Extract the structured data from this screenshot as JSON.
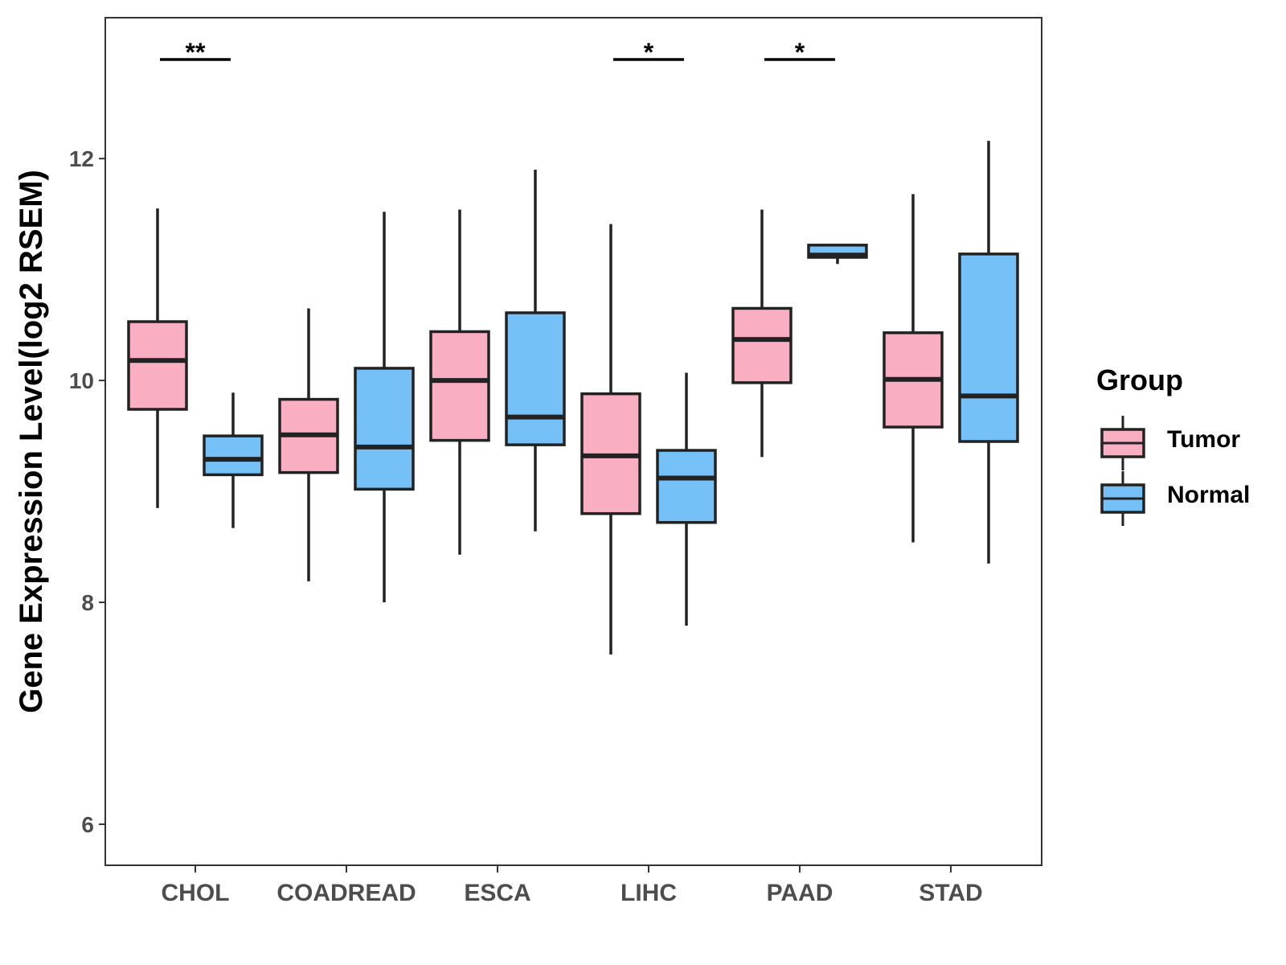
{
  "chart_data": {
    "type": "boxplot",
    "title": "",
    "xlabel": "",
    "ylabel": "Gene Expression Level(log2 RSEM)",
    "ylim": [
      5.63,
      13.27
    ],
    "yticks": [
      6,
      8,
      10,
      12
    ],
    "categories": [
      "CHOL",
      "COADREAD",
      "ESCA",
      "LIHC",
      "PAAD",
      "STAD"
    ],
    "legend": {
      "title": "Group",
      "position": "right",
      "entries": [
        {
          "name": "Tumor",
          "color": "#F9AFC1"
        },
        {
          "name": "Normal",
          "color": "#75C0F7"
        }
      ]
    },
    "series": [
      {
        "name": "Tumor",
        "color": "#F9AFC1",
        "boxes": [
          {
            "category": "CHOL",
            "whisker_low": 8.85,
            "q1": 9.74,
            "median": 10.18,
            "q3": 10.53,
            "whisker_high": 11.55
          },
          {
            "category": "COADREAD",
            "whisker_low": 8.19,
            "q1": 9.17,
            "median": 9.51,
            "q3": 9.83,
            "whisker_high": 10.65
          },
          {
            "category": "ESCA",
            "whisker_low": 8.43,
            "q1": 9.46,
            "median": 10.0,
            "q3": 10.44,
            "whisker_high": 11.54
          },
          {
            "category": "LIHC",
            "whisker_low": 7.53,
            "q1": 8.8,
            "median": 9.32,
            "q3": 9.88,
            "whisker_high": 11.41
          },
          {
            "category": "PAAD",
            "whisker_low": 9.31,
            "q1": 9.98,
            "median": 10.37,
            "q3": 10.65,
            "whisker_high": 11.54
          },
          {
            "category": "STAD",
            "whisker_low": 8.54,
            "q1": 9.58,
            "median": 10.01,
            "q3": 10.43,
            "whisker_high": 11.68
          }
        ]
      },
      {
        "name": "Normal",
        "color": "#75C0F7",
        "boxes": [
          {
            "category": "CHOL",
            "whisker_low": 8.67,
            "q1": 9.15,
            "median": 9.29,
            "q3": 9.5,
            "whisker_high": 9.89
          },
          {
            "category": "COADREAD",
            "whisker_low": 8.0,
            "q1": 9.02,
            "median": 9.4,
            "q3": 10.11,
            "whisker_high": 11.52
          },
          {
            "category": "ESCA",
            "whisker_low": 8.64,
            "q1": 9.42,
            "median": 9.67,
            "q3": 10.61,
            "whisker_high": 11.9
          },
          {
            "category": "LIHC",
            "whisker_low": 7.79,
            "q1": 8.72,
            "median": 9.12,
            "q3": 9.37,
            "whisker_high": 10.07
          },
          {
            "category": "PAAD",
            "whisker_low": 11.05,
            "q1": 11.11,
            "median": 11.13,
            "q3": 11.22,
            "whisker_high": 11.22
          },
          {
            "category": "STAD",
            "whisker_low": 8.35,
            "q1": 9.45,
            "median": 9.86,
            "q3": 11.14,
            "whisker_high": 12.16
          }
        ]
      }
    ],
    "significance": [
      {
        "category": "CHOL",
        "label": "**"
      },
      {
        "category": "LIHC",
        "label": "*"
      },
      {
        "category": "PAAD",
        "label": "*"
      }
    ]
  }
}
